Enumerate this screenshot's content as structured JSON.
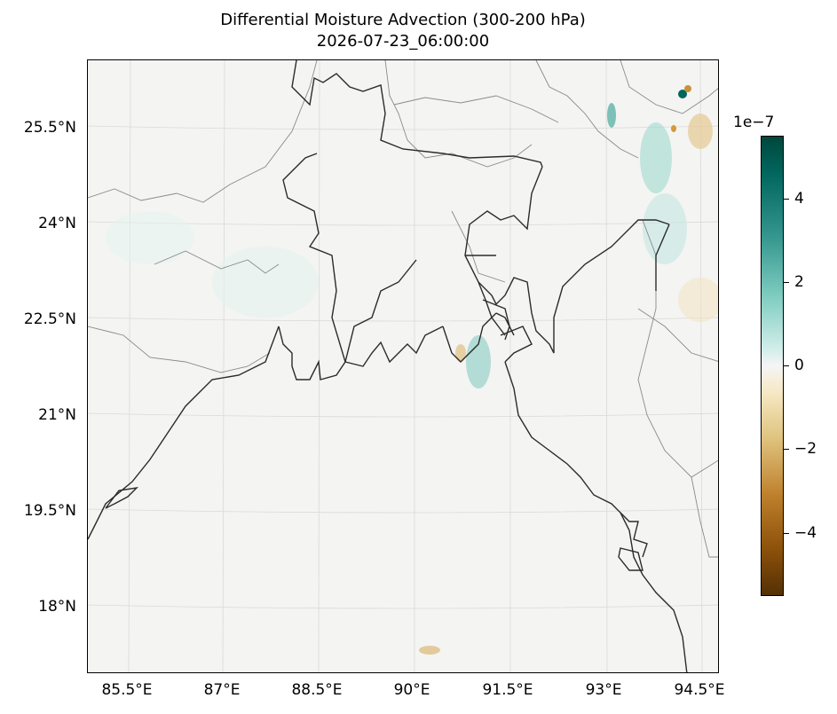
{
  "title": "Differential Moisture Advection (300-200 hPa)",
  "subtitle": "2026-07-23_06:00:00",
  "lat_labels": [
    "25.5°N",
    "24°N",
    "22.5°N",
    "21°N",
    "19.5°N",
    "18°N"
  ],
  "lon_labels": [
    "85.5°E",
    "87°E",
    "88.5°E",
    "90°E",
    "91.5°E",
    "93°E",
    "94.5°E"
  ],
  "colorbar": {
    "exponent": "1e−7",
    "tick_labels": [
      "4",
      "2",
      "0",
      "−2",
      "−4"
    ],
    "colormap": "BrBG",
    "range": [
      -5.5,
      5.5
    ]
  },
  "colors": {
    "background": "#f4f4f2",
    "coastline": "#2b2b2b",
    "borders": "#8a8a8a"
  }
}
